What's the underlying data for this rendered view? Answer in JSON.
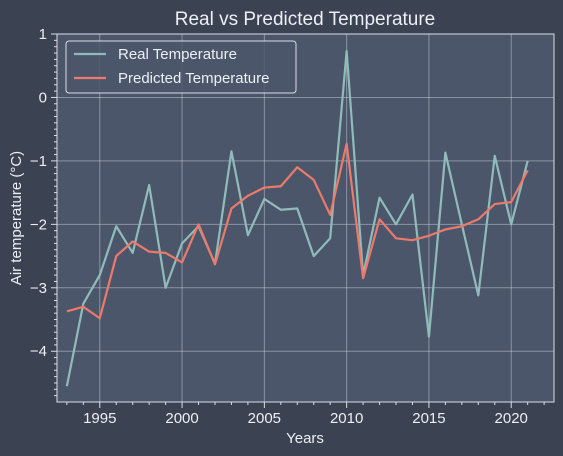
{
  "chart_data": {
    "type": "line",
    "title": "Real vs Predicted Temperature",
    "xlabel": "Years",
    "ylabel": "Air temperature (°C)",
    "xlim": [
      1992.4,
      2022.6
    ],
    "ylim": [
      -4.8,
      1.0
    ],
    "xticks": [
      1995,
      2000,
      2005,
      2010,
      2015,
      2020
    ],
    "yticks": [
      1,
      0,
      -1,
      -2,
      -3,
      -4
    ],
    "ytick_labels": [
      "1",
      "0",
      "−1",
      "−2",
      "−3",
      "−4"
    ],
    "grid": true,
    "legend_position": "top-left",
    "x": [
      1993,
      1994,
      1995,
      1996,
      1997,
      1998,
      1999,
      2000,
      2001,
      2002,
      2003,
      2004,
      2005,
      2006,
      2007,
      2008,
      2009,
      2010,
      2011,
      2012,
      2013,
      2014,
      2015,
      2016,
      2017,
      2018,
      2019,
      2020,
      2021
    ],
    "series": [
      {
        "name": "Real Temperature",
        "color": "#8fbcbb",
        "values": [
          -4.55,
          -3.25,
          -2.8,
          -2.03,
          -2.45,
          -1.38,
          -3.0,
          -2.3,
          -2.03,
          -2.62,
          -0.85,
          -2.17,
          -1.6,
          -1.77,
          -1.75,
          -2.5,
          -2.22,
          0.73,
          -2.8,
          -1.58,
          -2.0,
          -1.53,
          -3.77,
          -0.87,
          -2.0,
          -3.12,
          -0.92,
          -2.0,
          -1.0
        ]
      },
      {
        "name": "Predicted Temperature",
        "color": "#eb7a6b",
        "values": [
          -3.37,
          -3.3,
          -3.48,
          -2.5,
          -2.27,
          -2.43,
          -2.45,
          -2.6,
          -2.0,
          -2.63,
          -1.75,
          -1.55,
          -1.42,
          -1.4,
          -1.1,
          -1.3,
          -1.85,
          -0.73,
          -2.85,
          -1.92,
          -2.22,
          -2.25,
          -2.18,
          -2.08,
          -2.03,
          -1.92,
          -1.68,
          -1.65,
          -1.15
        ]
      }
    ]
  }
}
